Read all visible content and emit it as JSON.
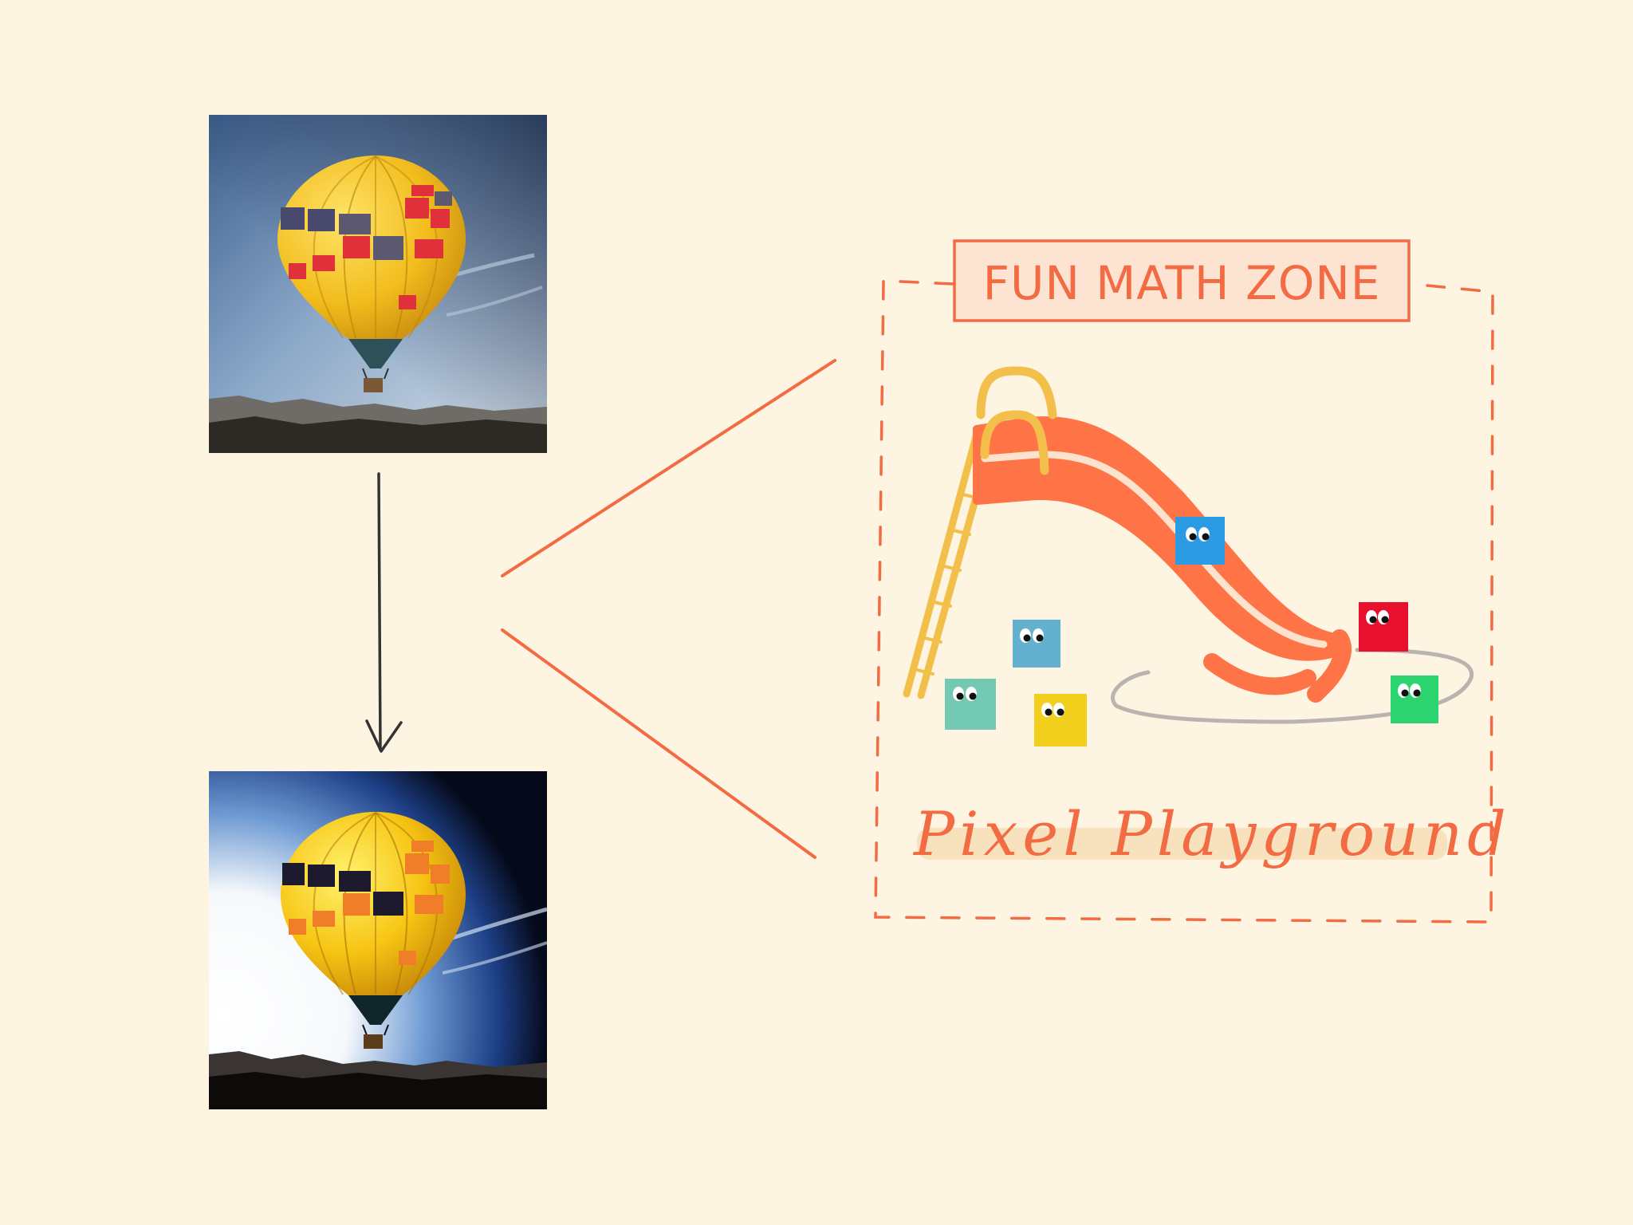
{
  "colors": {
    "background": "#fdf5e2",
    "accent": "#f26b43",
    "arrow": "#333333",
    "slide": "#ff7446",
    "ladder": "#f2c04a",
    "sign_fill": "#fde4d2",
    "highlight": "#f8e2bd",
    "track": "#b9b5ae"
  },
  "images": {
    "original": {
      "name": "hot-air-balloon-original",
      "style": "soft"
    },
    "processed": {
      "name": "hot-air-balloon-enhanced",
      "style": "high-contrast"
    }
  },
  "arrow": {
    "direction": "down"
  },
  "playground": {
    "sign_text": "FUN MATH ZONE",
    "caption": "Pixel Playground",
    "pixels": [
      {
        "name": "blue-pixel-on-slide",
        "color": "#2b9be3"
      },
      {
        "name": "red-pixel",
        "color": "#e8112d"
      },
      {
        "name": "steel-blue-pixel",
        "color": "#64b0cf"
      },
      {
        "name": "teal-pixel",
        "color": "#73c9b2"
      },
      {
        "name": "yellow-pixel",
        "color": "#f3d01e"
      },
      {
        "name": "green-pixel",
        "color": "#2bd46f"
      }
    ]
  }
}
